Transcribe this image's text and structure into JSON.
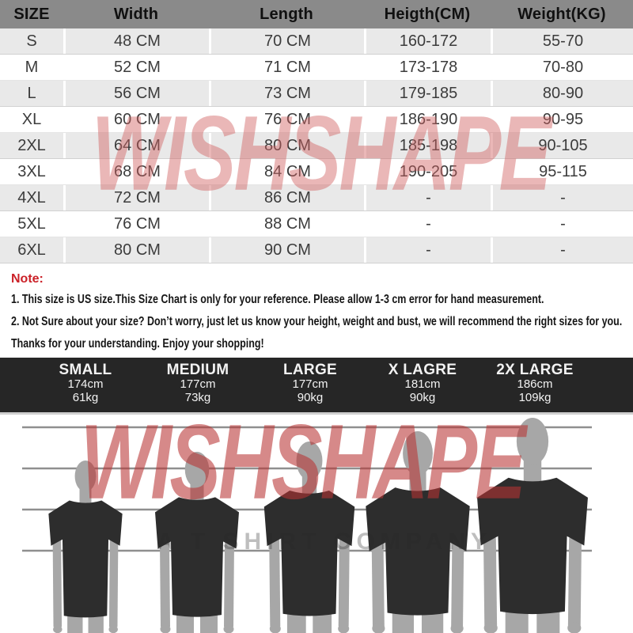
{
  "size_table": {
    "headers": [
      "SIZE",
      "Width",
      "Length",
      "Heigth(CM)",
      "Weight(KG)"
    ],
    "rows": [
      [
        "S",
        "48 CM",
        "70 CM",
        "160-172",
        "55-70"
      ],
      [
        "M",
        "52 CM",
        "71 CM",
        "173-178",
        "70-80"
      ],
      [
        "L",
        "56 CM",
        "73 CM",
        "179-185",
        "80-90"
      ],
      [
        "XL",
        "60 CM",
        "76 CM",
        "186-190",
        "90-95"
      ],
      [
        "2XL",
        "64 CM",
        "80 CM",
        "185-198",
        "90-105"
      ],
      [
        "3XL",
        "68 CM",
        "84 CM",
        "190-205",
        "95-115"
      ],
      [
        "4XL",
        "72 CM",
        "86 CM",
        "-",
        "-"
      ],
      [
        "5XL",
        "76 CM",
        "88 CM",
        "-",
        "-"
      ],
      [
        "6XL",
        "80 CM",
        "90 CM",
        "-",
        "-"
      ]
    ]
  },
  "note": {
    "label": "Note:",
    "lines": [
      "1. This size is US size.This Size Chart is only for your reference. Please allow 1-3 cm error for hand measurement.",
      "2. Not Sure about your size? Don’t worry, just let us know your height, weight and bust, we will recommend the right sizes for you.",
      "Thanks for your understanding. Enjoy your shopping!"
    ]
  },
  "size_guide": {
    "entries": [
      {
        "name": "SMALL",
        "height": "174cm",
        "weight": "61kg"
      },
      {
        "name": "MEDIUM",
        "height": "177cm",
        "weight": "73kg"
      },
      {
        "name": "LARGE",
        "height": "177cm",
        "weight": "90kg"
      },
      {
        "name": "X LAGRE",
        "height": "181cm",
        "weight": "90kg"
      },
      {
        "name": "2X LARGE",
        "height": "186cm",
        "weight": "109kg"
      }
    ]
  },
  "watermark": {
    "brand": "WISHSHAPE",
    "tagline": "A T SHIRT COMPANY",
    "color": "#d06060"
  },
  "colors": {
    "header_bg": "#8a8a8a",
    "row_alt_bg": "#e9e9e9",
    "note_red": "#cb2128",
    "bar_bg": "#262626",
    "silhouette_gray": "#a7a7a7",
    "shirt_black": "#2d2d2d",
    "line_gray": "#8f8f8f"
  },
  "chart_data": {
    "type": "table",
    "title": "T-shirt size chart",
    "columns": [
      "SIZE",
      "Width",
      "Length",
      "Heigth(CM)",
      "Weight(KG)"
    ],
    "rows": [
      [
        "S",
        "48 CM",
        "70 CM",
        "160-172",
        "55-70"
      ],
      [
        "M",
        "52 CM",
        "71 CM",
        "173-178",
        "70-80"
      ],
      [
        "L",
        "56 CM",
        "73 CM",
        "179-185",
        "80-90"
      ],
      [
        "XL",
        "60 CM",
        "76 CM",
        "186-190",
        "90-95"
      ],
      [
        "2XL",
        "64 CM",
        "80 CM",
        "185-198",
        "90-105"
      ],
      [
        "3XL",
        "68 CM",
        "84 CM",
        "190-205",
        "95-115"
      ],
      [
        "4XL",
        "72 CM",
        "86 CM",
        "-",
        "-"
      ],
      [
        "5XL",
        "76 CM",
        "88 CM",
        "-",
        "-"
      ],
      [
        "6XL",
        "80 CM",
        "90 CM",
        "-",
        "-"
      ]
    ],
    "model_reference": [
      {
        "label": "SMALL",
        "height_cm": 174,
        "weight_kg": 61
      },
      {
        "label": "MEDIUM",
        "height_cm": 177,
        "weight_kg": 73
      },
      {
        "label": "LARGE",
        "height_cm": 177,
        "weight_kg": 90
      },
      {
        "label": "X LAGRE",
        "height_cm": 181,
        "weight_kg": 90
      },
      {
        "label": "2X LARGE",
        "height_cm": 186,
        "weight_kg": 109
      }
    ]
  }
}
